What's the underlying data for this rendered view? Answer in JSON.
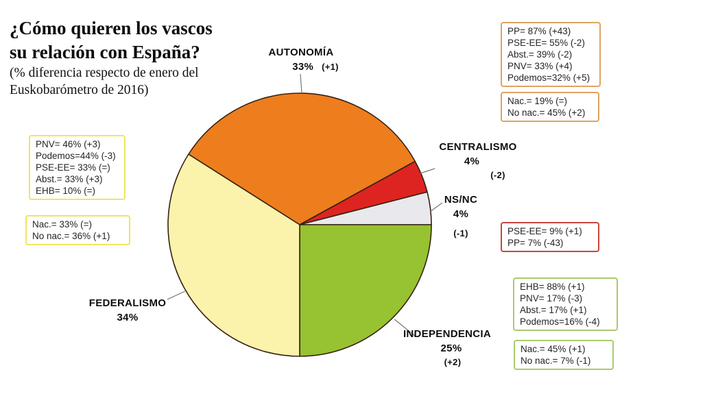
{
  "title": {
    "line1": "¿Cómo quieren los vascos",
    "line2": "su relación con España?",
    "subtitle_line1": "(% diferencia respecto de enero del",
    "subtitle_line2": "Euskobarómetro de 2016)"
  },
  "chart_data": {
    "type": "pie",
    "title": "¿Cómo quieren los vascos su relación con España?",
    "subtitle": "(% diferencia respecto de enero del Euskobarómetro de 2016)",
    "start_angle_deg_clockwise_from_top": -57.6,
    "stroke_color": "#332211",
    "slices": [
      {
        "id": "autonomia",
        "label": "AUTONOMÍA",
        "value_pct": 33,
        "pct_display": "33%",
        "delta_display": "(+1)",
        "color": "#EE7D1D"
      },
      {
        "id": "centralismo",
        "label": "CENTRALISMO",
        "value_pct": 4,
        "pct_display": "4%",
        "delta_display": "(-2)",
        "color": "#DE2421"
      },
      {
        "id": "nsnc",
        "label": "NS/NC",
        "value_pct": 4,
        "pct_display": "4%",
        "delta_display": "(-1)",
        "color": "#E9E9ED"
      },
      {
        "id": "independencia",
        "label": "INDEPENDENCIA",
        "value_pct": 25,
        "pct_display": "25%",
        "delta_display": "(+2)",
        "color": "#97C231"
      },
      {
        "id": "federalismo",
        "label": "FEDERALISMO",
        "value_pct": 34,
        "pct_display": "34%",
        "delta_display": "",
        "color": "#FBF2AC"
      }
    ]
  },
  "annotations": {
    "autonomia_parties": {
      "border_color": "#E0A361",
      "lines": [
        "PP= 87% (+43)",
        "PSE-EE= 55% (-2)",
        "Abst.= 39% (-2)",
        "PNV= 33% (+4)",
        "Podemos=32% (+5)"
      ]
    },
    "autonomia_nationalism": {
      "border_color": "#E0A361",
      "lines": [
        "Nac.= 19% (=)",
        "No nac.= 45% (+2)"
      ]
    },
    "federalismo_parties": {
      "border_color": "#EFE55C",
      "lines": [
        "PNV= 46% (+3)",
        "Podemos=44% (-3)",
        "PSE-EE= 33% (=)",
        "Abst.= 33% (+3)",
        "EHB= 10% (=)"
      ]
    },
    "federalismo_nationalism": {
      "border_color": "#EFE55C",
      "lines": [
        "Nac.= 33% (=)",
        "No nac.= 36% (+1)"
      ]
    },
    "centralismo_parties": {
      "border_color": "#C7453F",
      "lines": [
        "PSE-EE= 9% (+1)",
        "PP= 7% (-43)"
      ]
    },
    "independencia_parties": {
      "border_color": "#A9CB6E",
      "lines": [
        "EHB= 88% (+1)",
        "PNV= 17% (-3)",
        "Abst.= 17% (+1)",
        "Podemos=16% (-4)"
      ]
    },
    "independencia_nationalism": {
      "border_color": "#A9CB6E",
      "lines": [
        "Nac.= 45% (+1)",
        "No nac.= 7% (-1)"
      ]
    }
  }
}
